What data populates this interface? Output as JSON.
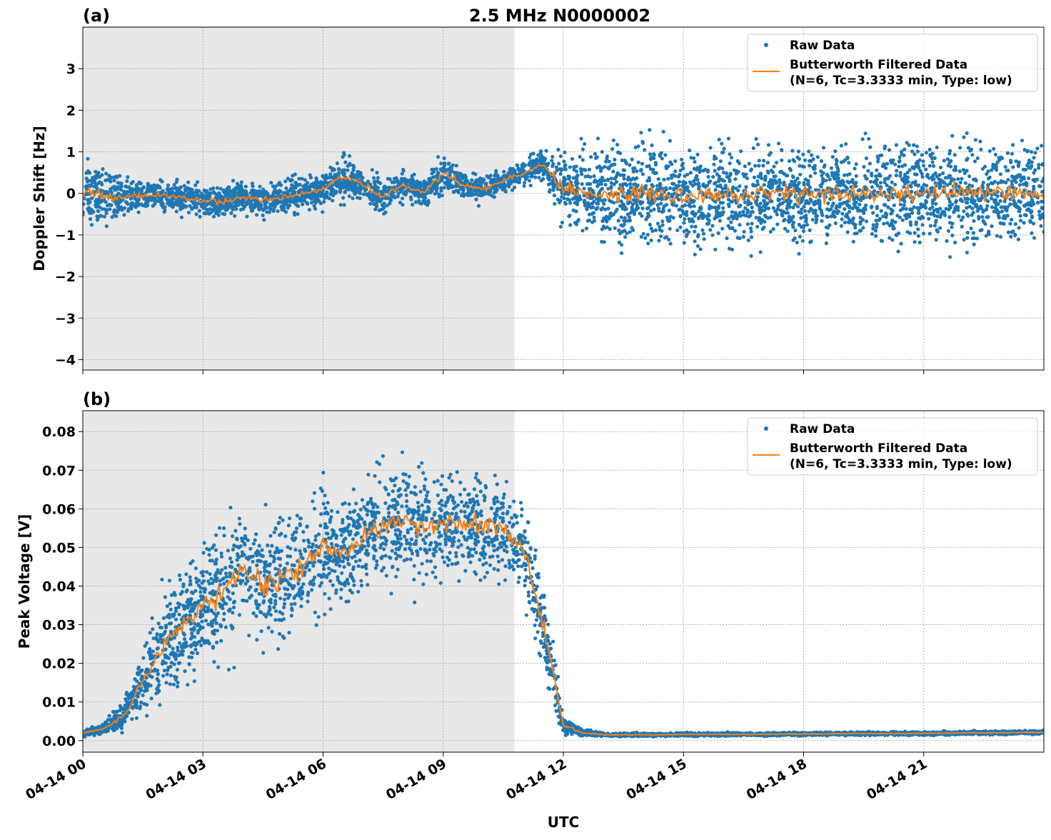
{
  "title": "2.5 MHz N0000002",
  "colors": {
    "raw": "#1f77b4",
    "filtered": "#ff7f0e",
    "shade": "#e8e8e8",
    "grid": "#b0b0b0"
  },
  "chart_data": [
    {
      "type": "scatter+line",
      "panel_label": "(a)",
      "ylabel": "Doppler Shift [Hz]",
      "xlabel": "",
      "xlim_hours": [
        0,
        24
      ],
      "ylim": [
        -4.25,
        4.0
      ],
      "yticks": [
        3,
        2,
        1,
        0,
        -1,
        -2,
        -3,
        -4
      ],
      "ytick_labels": [
        "3",
        "2",
        "1",
        "0",
        "−1",
        "−2",
        "−3",
        "−4"
      ],
      "grid": true,
      "legend_placement": "top-right",
      "legend": [
        "Raw Data",
        "Butterworth Filtered Data",
        "(N=6, Tc=3.3333 min, Type: low)"
      ],
      "shaded_span_hours": [
        0,
        10.78
      ],
      "sample_hours": [
        0,
        0.5,
        1,
        1.5,
        2,
        2.5,
        3,
        3.5,
        4,
        4.5,
        5,
        5.5,
        6,
        6.5,
        7,
        7.5,
        8,
        8.5,
        9,
        9.5,
        10,
        10.5,
        11,
        11.5,
        12,
        12.5,
        13,
        13.5,
        14,
        14.5,
        15,
        15.5,
        16,
        16.5,
        17,
        17.5,
        18,
        18.5,
        19,
        19.5,
        20,
        20.5,
        21,
        21.5,
        22,
        22.5,
        23,
        23.5,
        24
      ],
      "filtered": [
        0.0,
        -0.05,
        -0.1,
        -0.05,
        -0.05,
        -0.1,
        -0.2,
        -0.2,
        -0.1,
        -0.15,
        -0.1,
        0.0,
        0.1,
        0.4,
        0.2,
        -0.1,
        0.2,
        0.0,
        0.5,
        0.2,
        0.1,
        0.3,
        0.5,
        0.7,
        0.1,
        0.0,
        0.0,
        -0.05,
        0.0,
        0.0,
        -0.05,
        -0.05,
        0.0,
        -0.1,
        0.0,
        0.0,
        -0.05,
        0.0,
        0.0,
        0.0,
        -0.05,
        0.0,
        0.05,
        0.0,
        0.0,
        0.0,
        0.0,
        0.05,
        0.0
      ],
      "raw_halfspread": [
        0.9,
        0.8,
        0.5,
        0.4,
        0.4,
        0.4,
        0.4,
        0.4,
        0.4,
        0.4,
        0.4,
        0.45,
        0.45,
        0.6,
        0.45,
        0.4,
        0.4,
        0.4,
        0.45,
        0.35,
        0.35,
        0.3,
        0.3,
        0.35,
        1.0,
        1.2,
        1.3,
        1.3,
        1.3,
        1.3,
        1.3,
        1.3,
        1.35,
        1.4,
        1.3,
        1.3,
        1.3,
        1.3,
        1.3,
        1.3,
        1.3,
        1.3,
        1.3,
        1.3,
        1.3,
        1.3,
        1.3,
        1.3,
        1.3
      ]
    },
    {
      "type": "scatter+line",
      "panel_label": "(b)",
      "ylabel": "Peak Voltage [V]",
      "xlabel": "UTC",
      "xlim_hours": [
        0,
        24
      ],
      "ylim": [
        -0.003,
        0.0854
      ],
      "yticks": [
        0.0,
        0.01,
        0.02,
        0.03,
        0.04,
        0.05,
        0.06,
        0.07,
        0.08
      ],
      "ytick_labels": [
        "0.00",
        "0.01",
        "0.02",
        "0.03",
        "0.04",
        "0.05",
        "0.06",
        "0.07",
        "0.08"
      ],
      "xticks_hours": [
        0,
        3,
        6,
        9,
        12,
        15,
        18,
        21
      ],
      "xtick_labels": [
        "04-14 00",
        "04-14 03",
        "04-14 06",
        "04-14 09",
        "04-14 12",
        "04-14 15",
        "04-14 18",
        "04-14 21"
      ],
      "grid": true,
      "legend_placement": "top-right",
      "legend": [
        "Raw Data",
        "Butterworth Filtered Data",
        "(N=6, Tc=3.3333 min, Type: low)"
      ],
      "shaded_span_hours": [
        0,
        10.78
      ],
      "sample_hours": [
        0,
        0.5,
        1,
        1.5,
        2,
        2.5,
        3,
        3.5,
        4,
        4.5,
        5,
        5.5,
        6,
        6.5,
        7,
        7.5,
        8,
        8.5,
        9,
        9.5,
        10,
        10.5,
        11,
        11.5,
        12,
        12.5,
        13,
        13.5,
        14,
        14.5,
        15,
        15.5,
        16,
        16.5,
        17,
        17.5,
        18,
        18.5,
        19,
        19.5,
        20,
        20.5,
        21,
        21.5,
        22,
        22.5,
        23,
        23.5,
        24
      ],
      "filtered": [
        0.002,
        0.003,
        0.006,
        0.015,
        0.025,
        0.03,
        0.035,
        0.038,
        0.045,
        0.04,
        0.042,
        0.045,
        0.05,
        0.048,
        0.053,
        0.055,
        0.057,
        0.055,
        0.056,
        0.057,
        0.055,
        0.055,
        0.05,
        0.03,
        0.004,
        0.002,
        0.0015,
        0.0015,
        0.0015,
        0.0015,
        0.0016,
        0.0016,
        0.0016,
        0.0016,
        0.0016,
        0.0017,
        0.0017,
        0.0017,
        0.0018,
        0.0018,
        0.0018,
        0.0018,
        0.0019,
        0.0019,
        0.002,
        0.002,
        0.002,
        0.0021,
        0.0021
      ],
      "raw_halfspread": [
        0.001,
        0.0015,
        0.004,
        0.009,
        0.014,
        0.016,
        0.017,
        0.018,
        0.018,
        0.018,
        0.018,
        0.018,
        0.018,
        0.017,
        0.016,
        0.016,
        0.016,
        0.016,
        0.015,
        0.015,
        0.015,
        0.015,
        0.014,
        0.012,
        0.003,
        0.001,
        0.0005,
        0.0005,
        0.0005,
        0.0005,
        0.0005,
        0.0005,
        0.0005,
        0.0005,
        0.0005,
        0.0005,
        0.0005,
        0.0005,
        0.0005,
        0.0005,
        0.0005,
        0.0005,
        0.0005,
        0.0005,
        0.0005,
        0.0005,
        0.0005,
        0.0005,
        0.0005
      ]
    }
  ]
}
